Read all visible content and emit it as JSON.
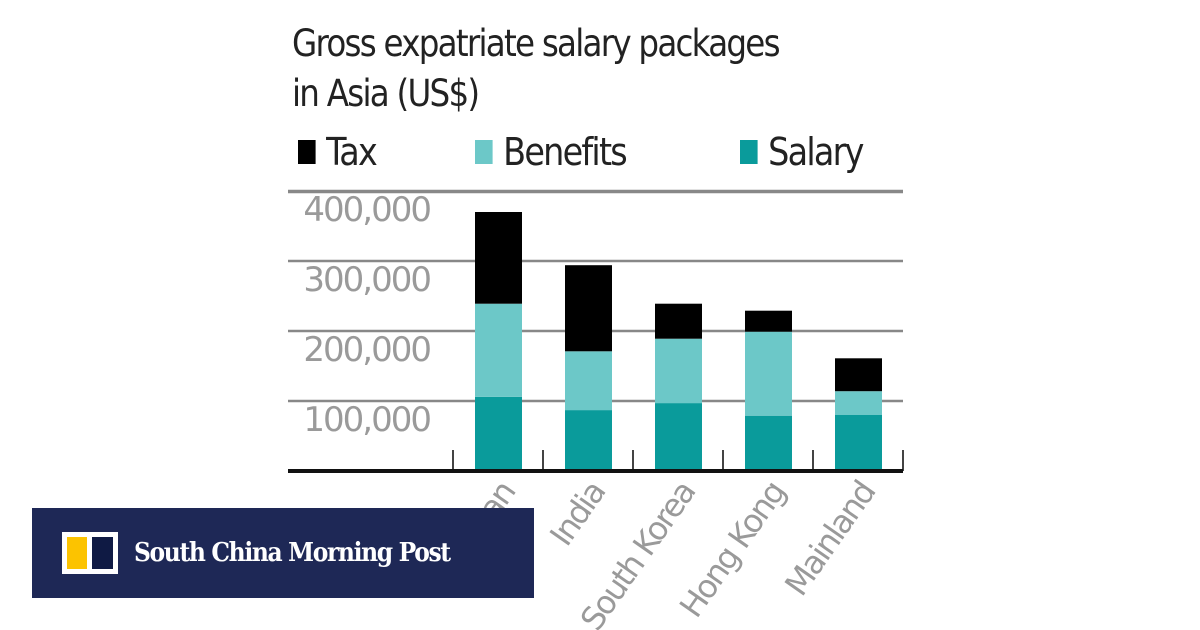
{
  "chart_data": {
    "type": "bar",
    "stacked": true,
    "subtitle": "Gross expatriate salary packages in Asia (US$)",
    "subtitle_lines": [
      "Gross expatriate salary packages",
      "in Asia (US$)"
    ],
    "categories": [
      "Japan",
      "India",
      "South Korea",
      "Hong Kong",
      "Mainland"
    ],
    "series": [
      {
        "name": "Salary",
        "color": "#0a9b9b",
        "values": [
          106000,
          87000,
          97000,
          79000,
          80000
        ]
      },
      {
        "name": "Benefits",
        "color": "#6cc8c8",
        "values": [
          133000,
          84000,
          92000,
          120000,
          34000
        ]
      },
      {
        "name": "Tax",
        "color": "#000000",
        "values": [
          131000,
          123000,
          50000,
          30000,
          47000
        ]
      }
    ],
    "legend": [
      "Tax",
      "Benefits",
      "Salary"
    ],
    "legend_placement": "top",
    "yticks": [
      "100,000",
      "200,000",
      "300,000",
      "400,000"
    ],
    "ytick_values": [
      100000,
      200000,
      300000,
      400000
    ],
    "ylim": [
      0,
      400000
    ],
    "grid": true
  },
  "logo": {
    "text": "South China Morning Post",
    "color": "#1e2856"
  }
}
